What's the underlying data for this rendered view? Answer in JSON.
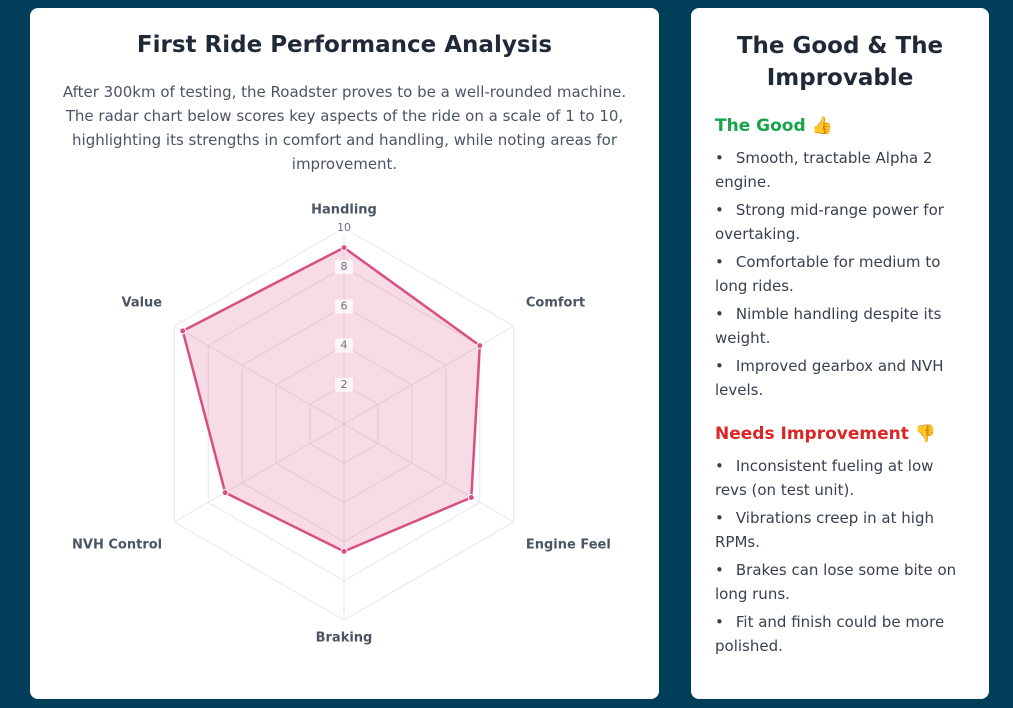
{
  "chart_data": {
    "type": "radar",
    "title": "First Ride Performance Analysis",
    "description": "After 300km of testing, the Roadster proves to be a well-rounded machine. The radar chart below scores key aspects of the ride on a scale of 1 to 10, highlighting its strengths in comfort and handling, while noting areas for improvement.",
    "categories": [
      "Handling",
      "Comfort",
      "Engine Feel",
      "Braking",
      "NVH Control",
      "Value"
    ],
    "values": [
      9,
      8,
      7.5,
      6.5,
      7,
      9.5
    ],
    "color": "#d94f82",
    "rlim": [
      0,
      10
    ],
    "rticks": [
      2,
      4,
      6,
      8,
      10
    ],
    "grid": true
  },
  "sidebar": {
    "title": "The Good & The Improvable",
    "sections": [
      {
        "heading": "The Good 👍",
        "color": "#16a34a",
        "items": [
          "Smooth, tractable Alpha 2 engine.",
          "Strong mid-range power for overtaking.",
          "Comfortable for medium to long rides.",
          "Nimble handling despite its weight.",
          "Improved gearbox and NVH levels."
        ]
      },
      {
        "heading": "Needs Improvement 👎",
        "color": "#dc2626",
        "items": [
          "Inconsistent fueling at low revs (on test unit).",
          "Vibrations creep in at high RPMs.",
          "Brakes can lose some bite on long runs.",
          "Fit and finish could be more polished."
        ]
      }
    ]
  }
}
